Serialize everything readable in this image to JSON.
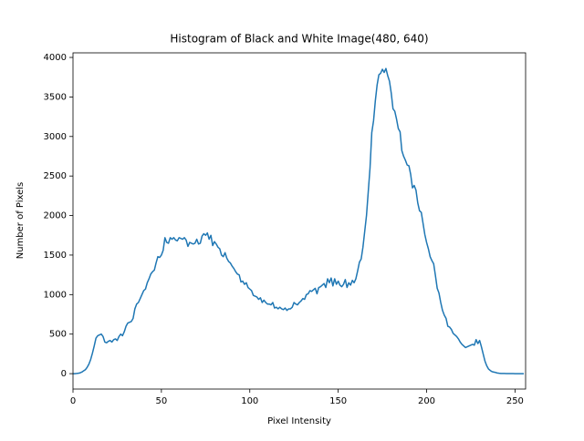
{
  "chart_data": {
    "type": "line",
    "title": "Histogram of Black and White Image(480, 640)",
    "x_label": "Pixel Intensity",
    "y_label": "Number of Pixels",
    "x": [
      0,
      1,
      2,
      3,
      4,
      5,
      6,
      7,
      8,
      9,
      10,
      11,
      12,
      13,
      14,
      15,
      16,
      17,
      18,
      19,
      20,
      21,
      22,
      23,
      24,
      25,
      26,
      27,
      28,
      29,
      30,
      31,
      32,
      33,
      34,
      35,
      36,
      37,
      38,
      39,
      40,
      41,
      42,
      43,
      44,
      45,
      46,
      47,
      48,
      49,
      50,
      51,
      52,
      53,
      54,
      55,
      56,
      57,
      58,
      59,
      60,
      61,
      62,
      63,
      64,
      65,
      66,
      67,
      68,
      69,
      70,
      71,
      72,
      73,
      74,
      75,
      76,
      77,
      78,
      79,
      80,
      81,
      82,
      83,
      84,
      85,
      86,
      87,
      88,
      89,
      90,
      91,
      92,
      93,
      94,
      95,
      96,
      97,
      98,
      99,
      100,
      101,
      102,
      103,
      104,
      105,
      106,
      107,
      108,
      109,
      110,
      111,
      112,
      113,
      114,
      115,
      116,
      117,
      118,
      119,
      120,
      121,
      122,
      123,
      124,
      125,
      126,
      127,
      128,
      129,
      130,
      131,
      132,
      133,
      134,
      135,
      136,
      137,
      138,
      139,
      140,
      141,
      142,
      143,
      144,
      145,
      146,
      147,
      148,
      149,
      150,
      151,
      152,
      153,
      154,
      155,
      156,
      157,
      158,
      159,
      160,
      161,
      162,
      163,
      164,
      165,
      166,
      167,
      168,
      169,
      170,
      171,
      172,
      173,
      174,
      175,
      176,
      177,
      178,
      179,
      180,
      181,
      182,
      183,
      184,
      185,
      186,
      187,
      188,
      189,
      190,
      191,
      192,
      193,
      194,
      195,
      196,
      197,
      198,
      199,
      200,
      201,
      202,
      203,
      204,
      205,
      206,
      207,
      208,
      209,
      210,
      211,
      212,
      213,
      214,
      215,
      216,
      217,
      218,
      219,
      220,
      221,
      222,
      223,
      224,
      225,
      226,
      227,
      228,
      229,
      230,
      231,
      232,
      233,
      234,
      235,
      236,
      237,
      238,
      239,
      240,
      241,
      242,
      243,
      244,
      245,
      246,
      247,
      248,
      249,
      250,
      251,
      252,
      253,
      254,
      255
    ],
    "series": [
      {
        "color": "#1f77b4",
        "values": [
          0,
          0,
          2,
          5,
          10,
          20,
          35,
          50,
          80,
          120,
          180,
          260,
          350,
          450,
          480,
          490,
          500,
          470,
          400,
          390,
          410,
          420,
          400,
          430,
          440,
          420,
          470,
          500,
          480,
          530,
          600,
          640,
          650,
          660,
          700,
          820,
          880,
          900,
          950,
          1000,
          1050,
          1070,
          1150,
          1200,
          1260,
          1290,
          1310,
          1400,
          1480,
          1470,
          1500,
          1560,
          1720,
          1660,
          1650,
          1720,
          1700,
          1720,
          1690,
          1680,
          1720,
          1710,
          1700,
          1720,
          1690,
          1610,
          1660,
          1650,
          1640,
          1650,
          1700,
          1640,
          1650,
          1740,
          1770,
          1750,
          1780,
          1700,
          1750,
          1620,
          1670,
          1640,
          1600,
          1580,
          1500,
          1480,
          1530,
          1460,
          1420,
          1400,
          1360,
          1330,
          1290,
          1260,
          1250,
          1160,
          1170,
          1130,
          1150,
          1090,
          1070,
          1050,
          990,
          980,
          970,
          940,
          960,
          900,
          930,
          900,
          880,
          880,
          870,
          900,
          830,
          840,
          820,
          840,
          820,
          810,
          830,
          800,
          820,
          820,
          840,
          900,
          880,
          870,
          900,
          920,
          950,
          940,
          1000,
          1010,
          1050,
          1040,
          1060,
          1080,
          1010,
          1090,
          1100,
          1120,
          1140,
          1090,
          1200,
          1150,
          1210,
          1110,
          1200,
          1130,
          1170,
          1120,
          1100,
          1130,
          1190,
          1090,
          1150,
          1120,
          1180,
          1150,
          1200,
          1300,
          1410,
          1450,
          1600,
          1800,
          2000,
          2300,
          2600,
          3050,
          3200,
          3450,
          3650,
          3780,
          3800,
          3850,
          3810,
          3860,
          3770,
          3700,
          3550,
          3350,
          3320,
          3220,
          3100,
          3060,
          2820,
          2750,
          2700,
          2640,
          2630,
          2520,
          2350,
          2380,
          2320,
          2160,
          2060,
          2040,
          1900,
          1760,
          1660,
          1580,
          1480,
          1430,
          1390,
          1240,
          1080,
          1020,
          900,
          800,
          740,
          700,
          600,
          590,
          560,
          510,
          490,
          470,
          440,
          400,
          370,
          350,
          330,
          340,
          350,
          360,
          370,
          360,
          430,
          380,
          420,
          340,
          250,
          160,
          100,
          60,
          40,
          25,
          20,
          15,
          8,
          5,
          3,
          2,
          2,
          1,
          1,
          1,
          1,
          1,
          0,
          0,
          0,
          0,
          0,
          0
        ]
      }
    ],
    "xlim": [
      0,
      256
    ],
    "ylim": [
      -195,
      4058
    ],
    "xticks": [
      0,
      50,
      100,
      150,
      200,
      250
    ],
    "yticks": [
      0,
      500,
      1000,
      1500,
      2000,
      2500,
      3000,
      3500,
      4000
    ]
  }
}
